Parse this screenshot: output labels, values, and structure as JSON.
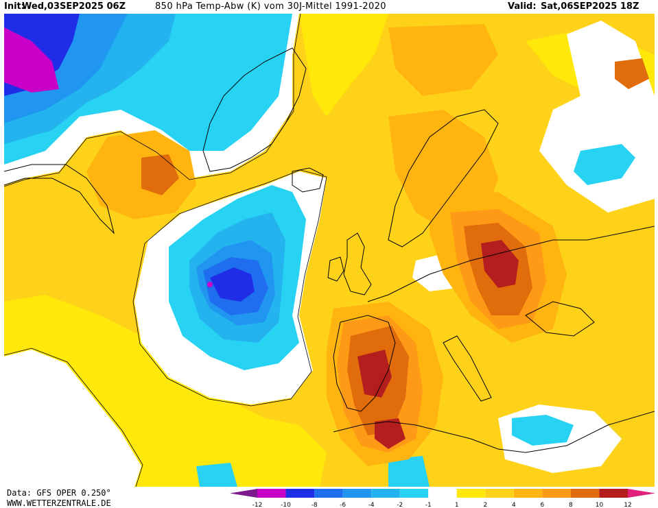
{
  "header": {
    "init_label": "Init:",
    "init_time": "Wed,03SEP2025 06Z",
    "title": "850 hPa Temp-Abw (K) vom 30J-Mittel 1991-2020",
    "valid_label": "Valid:",
    "valid_time": "Sat,06SEP2025 18Z"
  },
  "footer": {
    "source": "Data: GFS OPER 0.250°",
    "site": "WWW.WETTERZENTRALE.DE"
  },
  "legend": {
    "ticks": [
      "-12",
      "-10",
      "-8",
      "-6",
      "-4",
      "-2",
      "-1",
      "1",
      "2",
      "4",
      "6",
      "8",
      "10",
      "12"
    ],
    "colors": [
      "#c800c8",
      "#1f2ee6",
      "#1f6ef0",
      "#2196f0",
      "#23b4ef",
      "#27d2f2",
      "#ffffff",
      "#ffe80a",
      "#ffd21a",
      "#ffb40f",
      "#ff9a16",
      "#e06c0c",
      "#b41e1e"
    ],
    "left_arrow_color": "#7a1a8c",
    "right_arrow_color": "#e0207a"
  },
  "map_colors": {
    "zero_band": "#ffffff",
    "w1": "#ffe80a",
    "w2": "#ffd21a",
    "w4": "#ffb40f",
    "w6": "#ff9a16",
    "w8": "#e06c0c",
    "w10": "#b41e1e",
    "c1": "#27d2f2",
    "c2": "#23b4ef",
    "c4": "#2196f0",
    "c6": "#1f6ef0",
    "c8": "#1f2ee6",
    "c10": "#c800c8"
  }
}
